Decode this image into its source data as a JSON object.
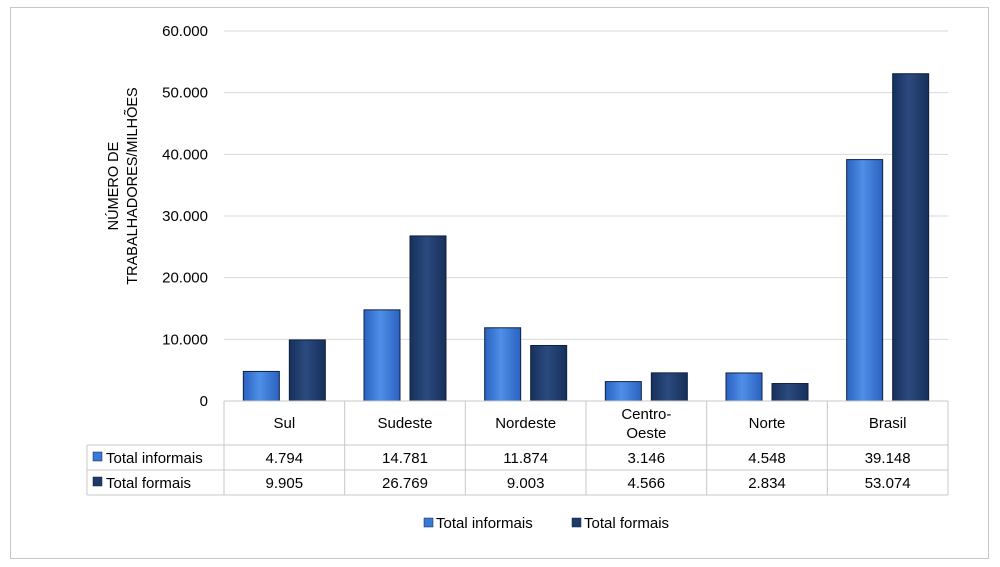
{
  "chart_data": {
    "type": "bar",
    "ylabel_lines": [
      "NÚMERO DE",
      "TRABALHADORES/MILHÕES"
    ],
    "ylim": [
      0,
      60000
    ],
    "yticks": [
      "0",
      "10.000",
      "20.000",
      "30.000",
      "40.000",
      "50.000",
      "60.000"
    ],
    "ytick_values": [
      0,
      10000,
      20000,
      30000,
      40000,
      50000,
      60000
    ],
    "grid": true,
    "categories": [
      [
        "Sul"
      ],
      [
        "Sudeste"
      ],
      [
        "Nordeste"
      ],
      [
        "Centro-",
        "Oeste"
      ],
      [
        "Norte"
      ],
      [
        "Brasil"
      ]
    ],
    "series": [
      {
        "name": "Total informais",
        "color": "#3a78d6",
        "values": [
          4794,
          14781,
          11874,
          3146,
          4548,
          39148
        ],
        "labels": [
          "4.794",
          "14.781",
          "11.874",
          "3.146",
          "4.548",
          "39.148"
        ]
      },
      {
        "name": "Total formais",
        "color": "#1f3a68",
        "values": [
          9905,
          26769,
          9003,
          4566,
          2834,
          53074
        ],
        "labels": [
          "9.905",
          "26.769",
          "9.003",
          "4.566",
          "2.834",
          "53.074"
        ]
      }
    ],
    "legend_position": "bottom"
  }
}
